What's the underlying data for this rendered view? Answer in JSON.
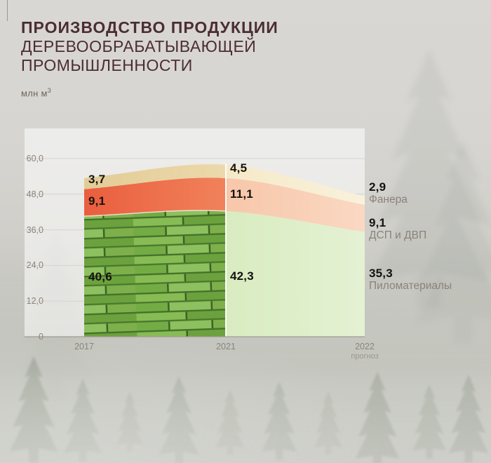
{
  "title": {
    "line1": "ПРОИЗВОДСТВО ПРОДУКЦИИ",
    "line2": "ДЕРЕВООБРАБАТЫВАЮЩЕЙ",
    "line3": "ПРОМЫШЛЕННОСТИ"
  },
  "unit": {
    "text": "млн м",
    "sup": "3"
  },
  "chart_data": {
    "type": "area",
    "stacked": true,
    "title": "Производство продукции деревообрабатывающей промышленности",
    "ylabel": "млн м³",
    "ylim": [
      0,
      60
    ],
    "grid": true,
    "x": [
      2017,
      2021,
      2022
    ],
    "x_axis": {
      "labels": [
        "2017",
        "2021",
        "2022"
      ],
      "sublabel_forecast": "прогноз",
      "forecast_index": 2
    },
    "y_axis": {
      "ticks": [
        "60,0",
        "48,0",
        "36,0",
        "24,0",
        "12,0",
        "0"
      ],
      "tick_values": [
        60,
        48,
        36,
        24,
        12,
        0
      ]
    },
    "series": [
      {
        "key": "lumber",
        "name": "Пиломатериалы",
        "values": [
          40.6,
          42.3,
          35.3
        ],
        "labels": [
          "40,6",
          "42,3",
          "35,3"
        ],
        "color_hist": [
          "#6fa83e",
          "#84b951"
        ],
        "color_forecast": [
          "#d9ecc0",
          "#e4f1d3"
        ],
        "texture": "planks"
      },
      {
        "key": "dsp",
        "name": "ДСП и ДВП",
        "values": [
          9.1,
          11.1,
          9.1
        ],
        "labels": [
          "9,1",
          "11,1",
          "9,1"
        ],
        "color_hist": [
          "#e95e3e",
          "#f1825b"
        ],
        "color_forecast": [
          "#f7c7a9",
          "#fad8c3"
        ]
      },
      {
        "key": "plywood",
        "name": "Фанера",
        "values": [
          3.7,
          4.5,
          2.9
        ],
        "labels": [
          "3,7",
          "4,5",
          "2,9"
        ],
        "color_hist": [
          "#e2cc96",
          "#ecd9ab"
        ],
        "color_forecast": [
          "#f5e9c7",
          "#f9f1dc"
        ]
      }
    ]
  }
}
